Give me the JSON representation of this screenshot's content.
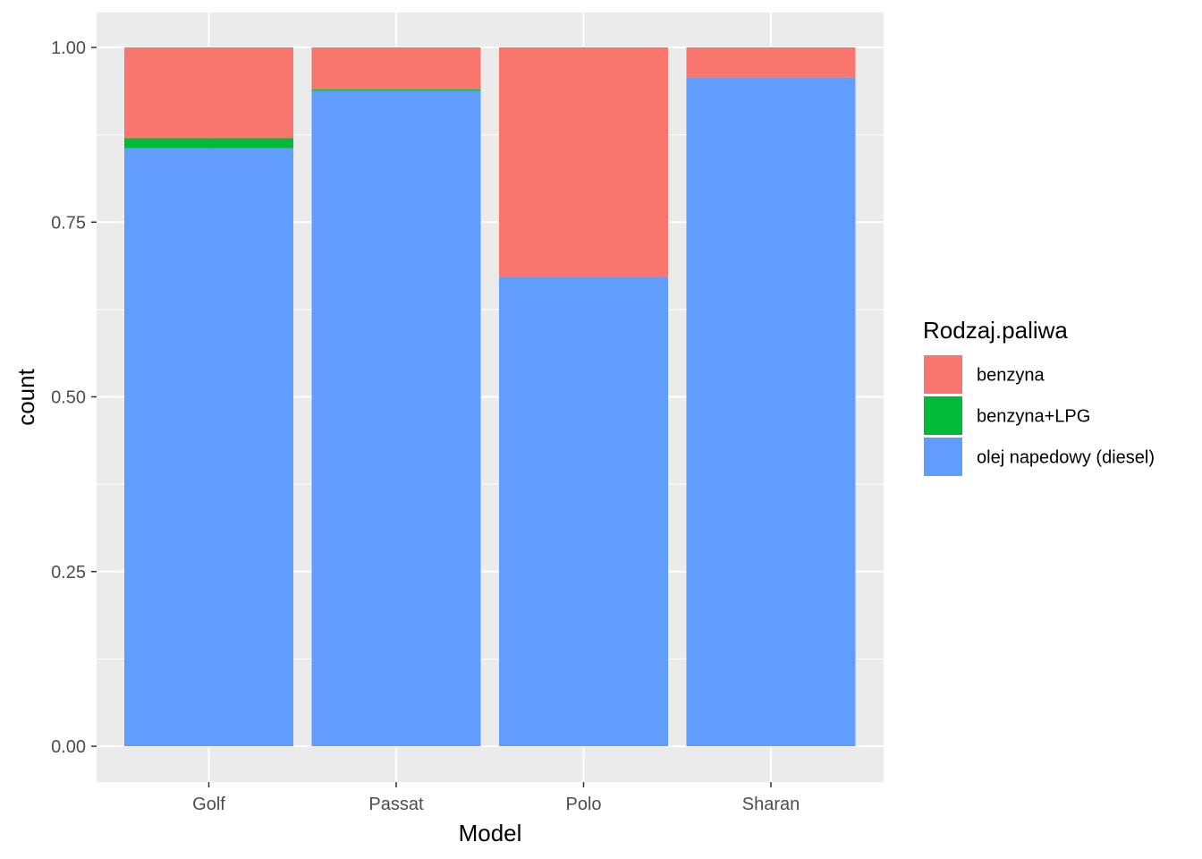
{
  "chart_data": {
    "type": "bar",
    "stacked": true,
    "position": "fill",
    "categories": [
      "Golf",
      "Passat",
      "Polo",
      "Sharan"
    ],
    "series": [
      {
        "name": "olej napedowy (diesel)",
        "color": "#619CFF",
        "values": [
          0.856,
          0.938,
          0.672,
          0.957
        ]
      },
      {
        "name": "benzyna+LPG",
        "color": "#00BA38",
        "values": [
          0.014,
          0.002,
          0.0,
          0.0
        ]
      },
      {
        "name": "benzyna",
        "color": "#F8766D",
        "values": [
          0.13,
          0.06,
          0.328,
          0.043
        ]
      }
    ],
    "xlabel": "Model",
    "ylabel": "count",
    "ylim": [
      0,
      1
    ],
    "yticks": [
      "0.00",
      "0.25",
      "0.50",
      "0.75",
      "1.00"
    ],
    "legend": {
      "title": "Rodzaj.paliwa",
      "position": "right",
      "items": [
        {
          "label": "benzyna",
          "color": "#F8766D"
        },
        {
          "label": "benzyna+LPG",
          "color": "#00BA38"
        },
        {
          "label": "olej napedowy (diesel)",
          "color": "#619CFF"
        }
      ]
    },
    "panel_background": "#EBEBEB",
    "grid": true
  }
}
